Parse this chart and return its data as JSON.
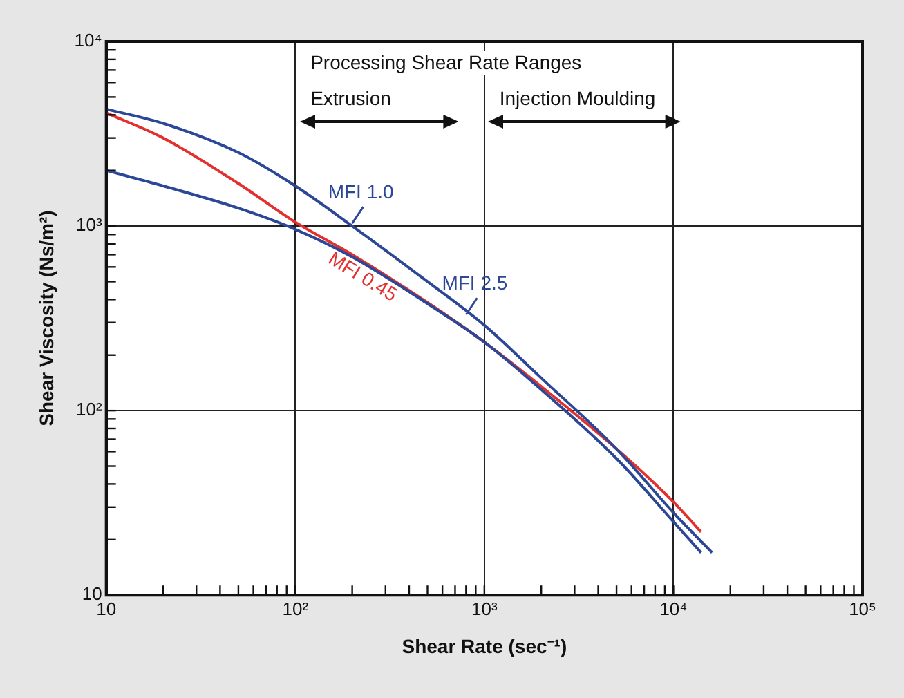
{
  "chart_data": {
    "type": "line",
    "xlabel": "Shear Rate (sec⁻¹)",
    "ylabel": "Shear Viscosity (Ns/m²)",
    "log": "xy",
    "grid": true,
    "legend": false,
    "marker": "none",
    "line_style": "solid",
    "xlim": [
      10,
      100000
    ],
    "ylim": [
      10,
      10000
    ],
    "xticks": [
      {
        "value": 10,
        "label": "10"
      },
      {
        "value": 20,
        "label": null
      },
      {
        "value": 30,
        "label": null
      },
      {
        "value": 40,
        "label": null
      },
      {
        "value": 50,
        "label": null
      },
      {
        "value": 60,
        "label": null
      },
      {
        "value": 70,
        "label": null
      },
      {
        "value": 80,
        "label": null
      },
      {
        "value": 90,
        "label": null
      },
      {
        "value": 100,
        "label": "10²"
      },
      {
        "value": 200,
        "label": null
      },
      {
        "value": 300,
        "label": null
      },
      {
        "value": 400,
        "label": null
      },
      {
        "value": 500,
        "label": null
      },
      {
        "value": 600,
        "label": null
      },
      {
        "value": 700,
        "label": null
      },
      {
        "value": 800,
        "label": null
      },
      {
        "value": 900,
        "label": null
      },
      {
        "value": 1000,
        "label": "10³"
      },
      {
        "value": 2000,
        "label": null
      },
      {
        "value": 3000,
        "label": null
      },
      {
        "value": 4000,
        "label": null
      },
      {
        "value": 5000,
        "label": null
      },
      {
        "value": 6000,
        "label": null
      },
      {
        "value": 7000,
        "label": null
      },
      {
        "value": 8000,
        "label": null
      },
      {
        "value": 9000,
        "label": null
      },
      {
        "value": 10000,
        "label": "10⁴"
      },
      {
        "value": 20000,
        "label": null
      },
      {
        "value": 30000,
        "label": null
      },
      {
        "value": 40000,
        "label": null
      },
      {
        "value": 50000,
        "label": null
      },
      {
        "value": 60000,
        "label": null
      },
      {
        "value": 70000,
        "label": null
      },
      {
        "value": 80000,
        "label": null
      },
      {
        "value": 90000,
        "label": null
      },
      {
        "value": 100000,
        "label": "10⁵"
      }
    ],
    "yticks": [
      {
        "value": 10,
        "label": "10"
      },
      {
        "value": 20,
        "label": null
      },
      {
        "value": 30,
        "label": null
      },
      {
        "value": 40,
        "label": null
      },
      {
        "value": 50,
        "label": null
      },
      {
        "value": 60,
        "label": null
      },
      {
        "value": 70,
        "label": null
      },
      {
        "value": 80,
        "label": null
      },
      {
        "value": 90,
        "label": null
      },
      {
        "value": 100,
        "label": "10²"
      },
      {
        "value": 200,
        "label": null
      },
      {
        "value": 300,
        "label": null
      },
      {
        "value": 400,
        "label": null
      },
      {
        "value": 500,
        "label": null
      },
      {
        "value": 600,
        "label": null
      },
      {
        "value": 700,
        "label": null
      },
      {
        "value": 800,
        "label": null
      },
      {
        "value": 900,
        "label": null
      },
      {
        "value": 1000,
        "label": "10³"
      },
      {
        "value": 2000,
        "label": null
      },
      {
        "value": 3000,
        "label": null
      },
      {
        "value": 4000,
        "label": null
      },
      {
        "value": 5000,
        "label": null
      },
      {
        "value": 6000,
        "label": null
      },
      {
        "value": 7000,
        "label": null
      },
      {
        "value": 8000,
        "label": null
      },
      {
        "value": 9000,
        "label": null
      },
      {
        "value": 10000,
        "label": "10⁴"
      }
    ],
    "series": [
      {
        "color": "#2b4796",
        "x": [
          10,
          20,
          50,
          100,
          200,
          500,
          1000,
          2000,
          5000,
          10000,
          16000
        ],
        "values": [
          4300,
          3600,
          2500,
          1650,
          1000,
          500,
          290,
          150,
          62,
          28,
          17
        ]
      },
      {
        "color": "#2b4796",
        "x": [
          10,
          20,
          50,
          100,
          200,
          500,
          1000,
          2000,
          5000,
          10000,
          14000
        ],
        "values": [
          2000,
          1650,
          1250,
          960,
          680,
          380,
          235,
          130,
          55,
          25,
          17
        ]
      },
      {
        "color": "#e2302e",
        "x": [
          10,
          20,
          50,
          100,
          200,
          500,
          1000,
          2000,
          5000,
          10000,
          14000
        ],
        "values": [
          4100,
          3000,
          1700,
          1050,
          700,
          385,
          235,
          135,
          62,
          32,
          22
        ]
      }
    ],
    "annotations": [
      "Processing Shear Rate Ranges",
      "Extrusion",
      "Injection Moulding",
      {
        "text": "MFI 1.0",
        "x": 200,
        "y": 1000
      },
      {
        "text": "MFI 2.5",
        "x": 800,
        "y": 320
      },
      {
        "text": "MFI 0.45",
        "x": 150,
        "y": 800
      }
    ]
  }
}
